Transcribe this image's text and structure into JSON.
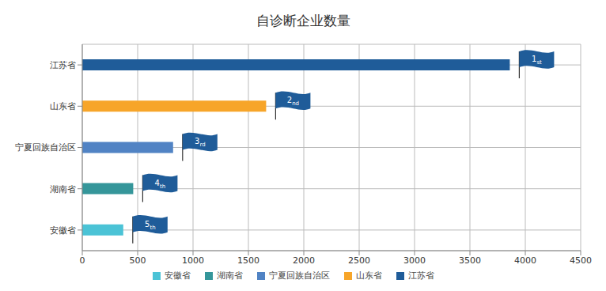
{
  "chart_data": {
    "type": "bar",
    "title": "自诊断企业数量",
    "orientation": "horizontal",
    "categories": [
      "江苏省",
      "山东省",
      "宁夏回族自治区",
      "湖南省",
      "安徽省"
    ],
    "values": [
      3860,
      1660,
      820,
      460,
      370
    ],
    "colors": [
      "#1f5c99",
      "#f7a529",
      "#5183c4",
      "#35969a",
      "#4bc3d6"
    ],
    "annotations": [
      "1st",
      "2nd",
      "3rd",
      "4th",
      "5th"
    ],
    "xlim": [
      0,
      4500
    ],
    "xticks": [
      0,
      500,
      1000,
      1500,
      2000,
      2500,
      3000,
      3500,
      4000,
      4500
    ],
    "grid": true,
    "legend": "bottom"
  }
}
